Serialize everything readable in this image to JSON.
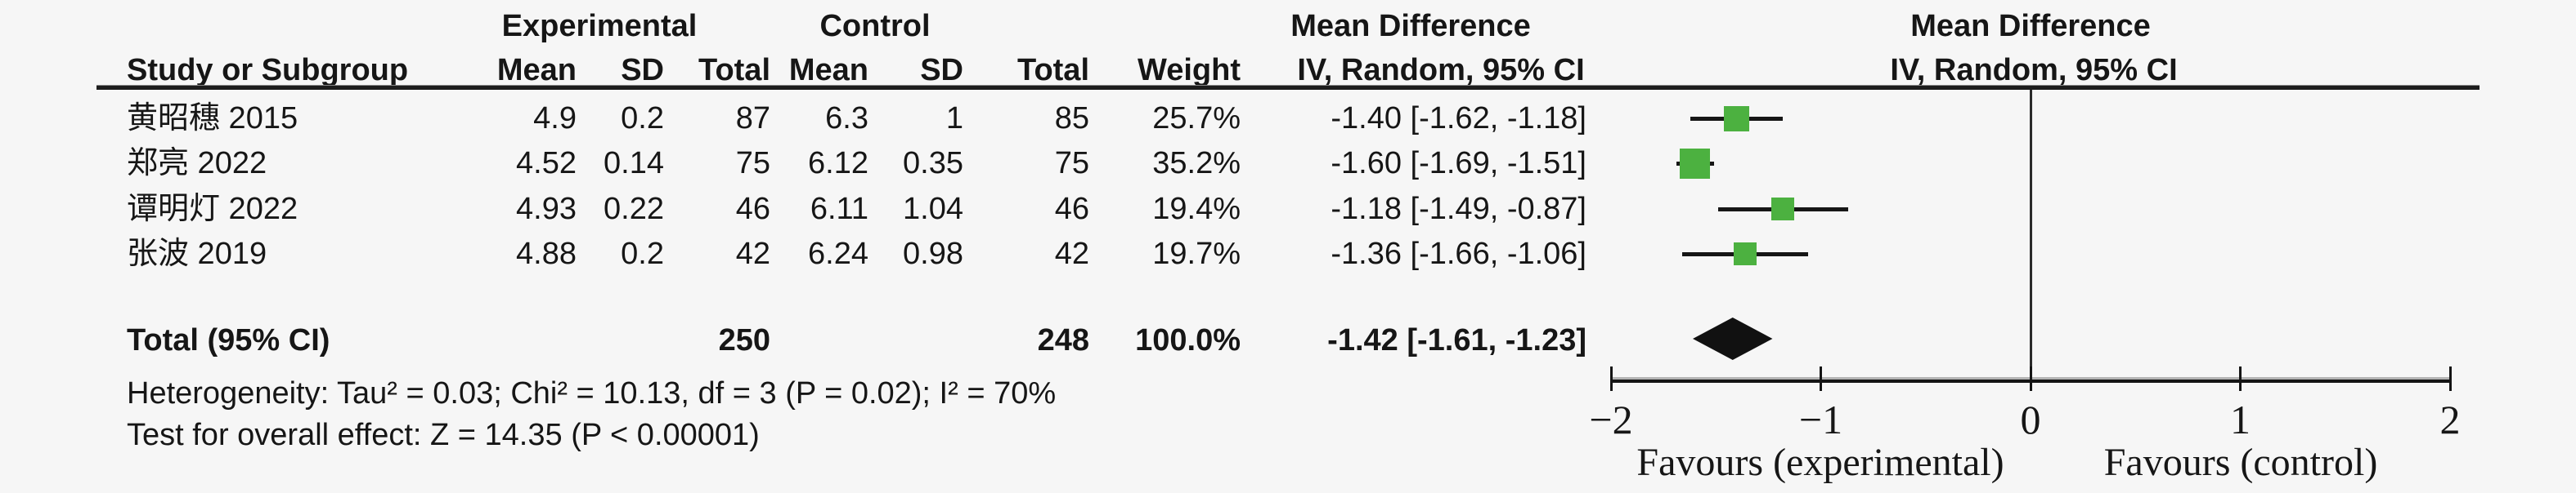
{
  "header": {
    "experimental": "Experimental",
    "control": "Control",
    "mean_difference_left": "Mean Difference",
    "mean_difference_right": "Mean Difference",
    "study_col": "Study or Subgroup",
    "exp_mean": "Mean",
    "exp_sd": "SD",
    "exp_total": "Total",
    "ctrl_mean": "Mean",
    "ctrl_sd": "SD",
    "ctrl_total": "Total",
    "weight": "Weight",
    "iv_left": "IV, Random, 95% CI",
    "iv_right": "IV, Random, 95% CI"
  },
  "table": {
    "rows": [
      {
        "study": "黄昭穗 2015",
        "exp_mean": "4.9",
        "exp_sd": "0.2",
        "exp_total": "87",
        "ctrl_mean": "6.3",
        "ctrl_sd": "1",
        "ctrl_total": "85",
        "weight": "25.7%",
        "md_ci": "-1.40 [-1.62, -1.18]"
      },
      {
        "study": "郑亮 2022",
        "exp_mean": "4.52",
        "exp_sd": "0.14",
        "exp_total": "75",
        "ctrl_mean": "6.12",
        "ctrl_sd": "0.35",
        "ctrl_total": "75",
        "weight": "35.2%",
        "md_ci": "-1.60 [-1.69, -1.51]"
      },
      {
        "study": "谭明灯 2022",
        "exp_mean": "4.93",
        "exp_sd": "0.22",
        "exp_total": "46",
        "ctrl_mean": "6.11",
        "ctrl_sd": "1.04",
        "ctrl_total": "46",
        "weight": "19.4%",
        "md_ci": "-1.18 [-1.49, -0.87]"
      },
      {
        "study": "张波 2019",
        "exp_mean": "4.88",
        "exp_sd": "0.2",
        "exp_total": "42",
        "ctrl_mean": "6.24",
        "ctrl_sd": "0.98",
        "ctrl_total": "42",
        "weight": "19.7%",
        "md_ci": "-1.36 [-1.66, -1.06]"
      }
    ],
    "total": {
      "label": "Total (95% CI)",
      "exp_total": "250",
      "ctrl_total": "248",
      "weight": "100.0%",
      "md_ci": "-1.42 [-1.61, -1.23]"
    },
    "heterogeneity_line": "Heterogeneity: Tau² = 0.03; Chi² = 10.13, df = 3 (P = 0.02); I² = 70%",
    "overall_effect_line": "Test for overall effect: Z = 14.35 (P < 0.00001)"
  },
  "chart_data": {
    "type": "forest",
    "effect_measure": "Mean Difference",
    "model": "IV, Random, 95% CI",
    "studies": [
      {
        "name": "黄昭穗 2015",
        "md": -1.4,
        "ci": [
          -1.62,
          -1.18
        ],
        "weight_pct": 25.7
      },
      {
        "name": "郑亮 2022",
        "md": -1.6,
        "ci": [
          -1.69,
          -1.51
        ],
        "weight_pct": 35.2
      },
      {
        "name": "谭明灯 2022",
        "md": -1.18,
        "ci": [
          -1.49,
          -0.87
        ],
        "weight_pct": 19.4
      },
      {
        "name": "张波 2019",
        "md": -1.36,
        "ci": [
          -1.66,
          -1.06
        ],
        "weight_pct": 19.7
      }
    ],
    "total": {
      "md": -1.42,
      "ci": [
        -1.61,
        -1.23
      ],
      "weight_pct": 100.0
    },
    "axis": {
      "min": -2,
      "max": 2,
      "ticks": [
        -2,
        -1,
        0,
        1,
        2
      ],
      "tick_labels": [
        "−2",
        "−1",
        "0",
        "1",
        "2"
      ],
      "left_label": "Favours (experimental)",
      "right_label": "Favours (control)"
    },
    "heterogeneity": "Tau² = 0.03; Chi² = 10.13, df = 3 (P = 0.02); I² = 70%",
    "overall_effect": "Z = 14.35 (P < 0.00001)",
    "marker_color": "#4cb140",
    "line_color": "#161616",
    "diamond_color": "#111111"
  }
}
